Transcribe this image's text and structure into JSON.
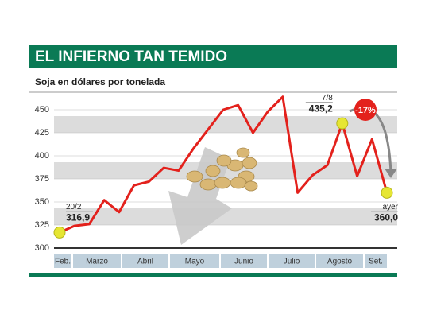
{
  "chart_data": {
    "type": "line",
    "title": "EL INFIERNO TAN TEMIDO",
    "subtitle": "Soja en dólares por tonelada",
    "months": [
      "Feb.",
      "Marzo",
      "Abril",
      "Mayo",
      "Junio",
      "Julio",
      "Agosto",
      "Set."
    ],
    "series": [
      {
        "color": "#e3211c",
        "values": [
          316.9,
          324,
          326,
          352,
          339,
          368,
          372,
          387,
          384,
          408,
          429,
          450,
          455,
          425,
          448,
          464,
          360,
          379,
          390,
          435.2,
          378,
          418,
          360.0
        ],
        "dates": [
          "20/2",
          null,
          null,
          null,
          null,
          null,
          null,
          null,
          null,
          null,
          null,
          null,
          null,
          null,
          null,
          null,
          null,
          null,
          null,
          "7/8",
          null,
          null,
          "ayer"
        ],
        "value_labels": [
          "316,9",
          null,
          null,
          null,
          null,
          null,
          null,
          null,
          null,
          null,
          null,
          null,
          null,
          null,
          null,
          null,
          null,
          null,
          null,
          "435,2",
          null,
          null,
          "360,0"
        ]
      }
    ],
    "annotation": "-17%",
    "ylim": [
      300,
      465
    ],
    "yticks": [
      300,
      325,
      350,
      375,
      400,
      425,
      450
    ],
    "grid": true
  }
}
